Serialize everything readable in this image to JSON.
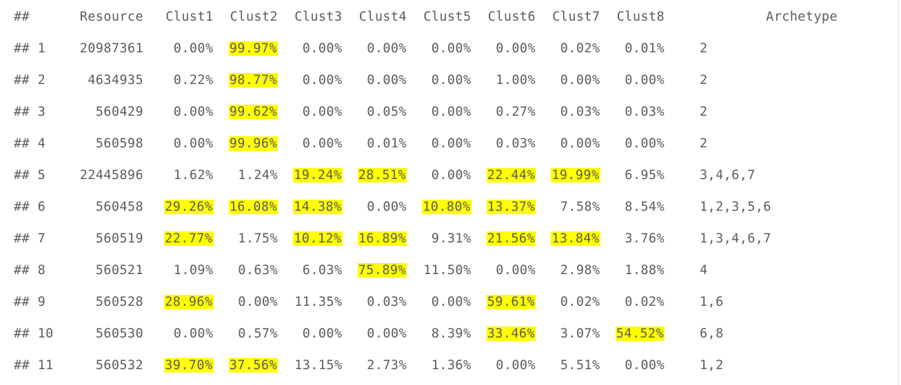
{
  "header": {
    "prefix": "##",
    "columns": [
      "Resource",
      "Clust1",
      "Clust2",
      "Clust3",
      "Clust4",
      "Clust5",
      "Clust6",
      "Clust7",
      "Clust8",
      "Archetype"
    ]
  },
  "rows": [
    {
      "prefix": "## 1",
      "resource": "20987361",
      "clusters": [
        "0.00%",
        "99.97%",
        "0.00%",
        "0.00%",
        "0.00%",
        "0.00%",
        "0.02%",
        "0.01%"
      ],
      "highlight": [
        false,
        true,
        false,
        false,
        false,
        false,
        false,
        false
      ],
      "archetype": "2"
    },
    {
      "prefix": "## 2",
      "resource": "4634935",
      "clusters": [
        "0.22%",
        "98.77%",
        "0.00%",
        "0.00%",
        "0.00%",
        "1.00%",
        "0.00%",
        "0.00%"
      ],
      "highlight": [
        false,
        true,
        false,
        false,
        false,
        false,
        false,
        false
      ],
      "archetype": "2"
    },
    {
      "prefix": "## 3",
      "resource": "560429",
      "clusters": [
        "0.00%",
        "99.62%",
        "0.00%",
        "0.05%",
        "0.00%",
        "0.27%",
        "0.03%",
        "0.03%"
      ],
      "highlight": [
        false,
        true,
        false,
        false,
        false,
        false,
        false,
        false
      ],
      "archetype": "2"
    },
    {
      "prefix": "## 4",
      "resource": "560598",
      "clusters": [
        "0.00%",
        "99.96%",
        "0.00%",
        "0.01%",
        "0.00%",
        "0.03%",
        "0.00%",
        "0.00%"
      ],
      "highlight": [
        false,
        true,
        false,
        false,
        false,
        false,
        false,
        false
      ],
      "archetype": "2"
    },
    {
      "prefix": "## 5",
      "resource": "22445896",
      "clusters": [
        "1.62%",
        "1.24%",
        "19.24%",
        "28.51%",
        "0.00%",
        "22.44%",
        "19.99%",
        "6.95%"
      ],
      "highlight": [
        false,
        false,
        true,
        true,
        false,
        true,
        true,
        false
      ],
      "archetype": "3,4,6,7"
    },
    {
      "prefix": "## 6",
      "resource": "560458",
      "clusters": [
        "29.26%",
        "16.08%",
        "14.38%",
        "0.00%",
        "10.80%",
        "13.37%",
        "7.58%",
        "8.54%"
      ],
      "highlight": [
        true,
        true,
        true,
        false,
        true,
        true,
        false,
        false
      ],
      "archetype": "1,2,3,5,6"
    },
    {
      "prefix": "## 7",
      "resource": "560519",
      "clusters": [
        "22.77%",
        "1.75%",
        "10.12%",
        "16.89%",
        "9.31%",
        "21.56%",
        "13.84%",
        "3.76%"
      ],
      "highlight": [
        true,
        false,
        true,
        true,
        false,
        true,
        true,
        false
      ],
      "archetype": "1,3,4,6,7"
    },
    {
      "prefix": "## 8",
      "resource": "560521",
      "clusters": [
        "1.09%",
        "0.63%",
        "6.03%",
        "75.89%",
        "11.50%",
        "0.00%",
        "2.98%",
        "1.88%"
      ],
      "highlight": [
        false,
        false,
        false,
        true,
        false,
        false,
        false,
        false
      ],
      "archetype": "4"
    },
    {
      "prefix": "## 9",
      "resource": "560528",
      "clusters": [
        "28.96%",
        "0.00%",
        "11.35%",
        "0.03%",
        "0.00%",
        "59.61%",
        "0.02%",
        "0.02%"
      ],
      "highlight": [
        true,
        false,
        false,
        false,
        false,
        true,
        false,
        false
      ],
      "archetype": "1,6"
    },
    {
      "prefix": "## 10",
      "resource": "560530",
      "clusters": [
        "0.00%",
        "0.57%",
        "0.00%",
        "0.00%",
        "8.39%",
        "33.46%",
        "3.07%",
        "54.52%"
      ],
      "highlight": [
        false,
        false,
        false,
        false,
        false,
        true,
        false,
        true
      ],
      "archetype": "6,8"
    },
    {
      "prefix": "## 11",
      "resource": "560532",
      "clusters": [
        "39.70%",
        "37.56%",
        "13.15%",
        "2.73%",
        "1.36%",
        "0.00%",
        "5.51%",
        "0.00%"
      ],
      "highlight": [
        true,
        true,
        false,
        false,
        false,
        false,
        false,
        false
      ],
      "archetype": "1,2"
    }
  ],
  "colors": {
    "text": "#5c5c5c",
    "highlight": "#ffff00",
    "background": "#ffffff"
  }
}
